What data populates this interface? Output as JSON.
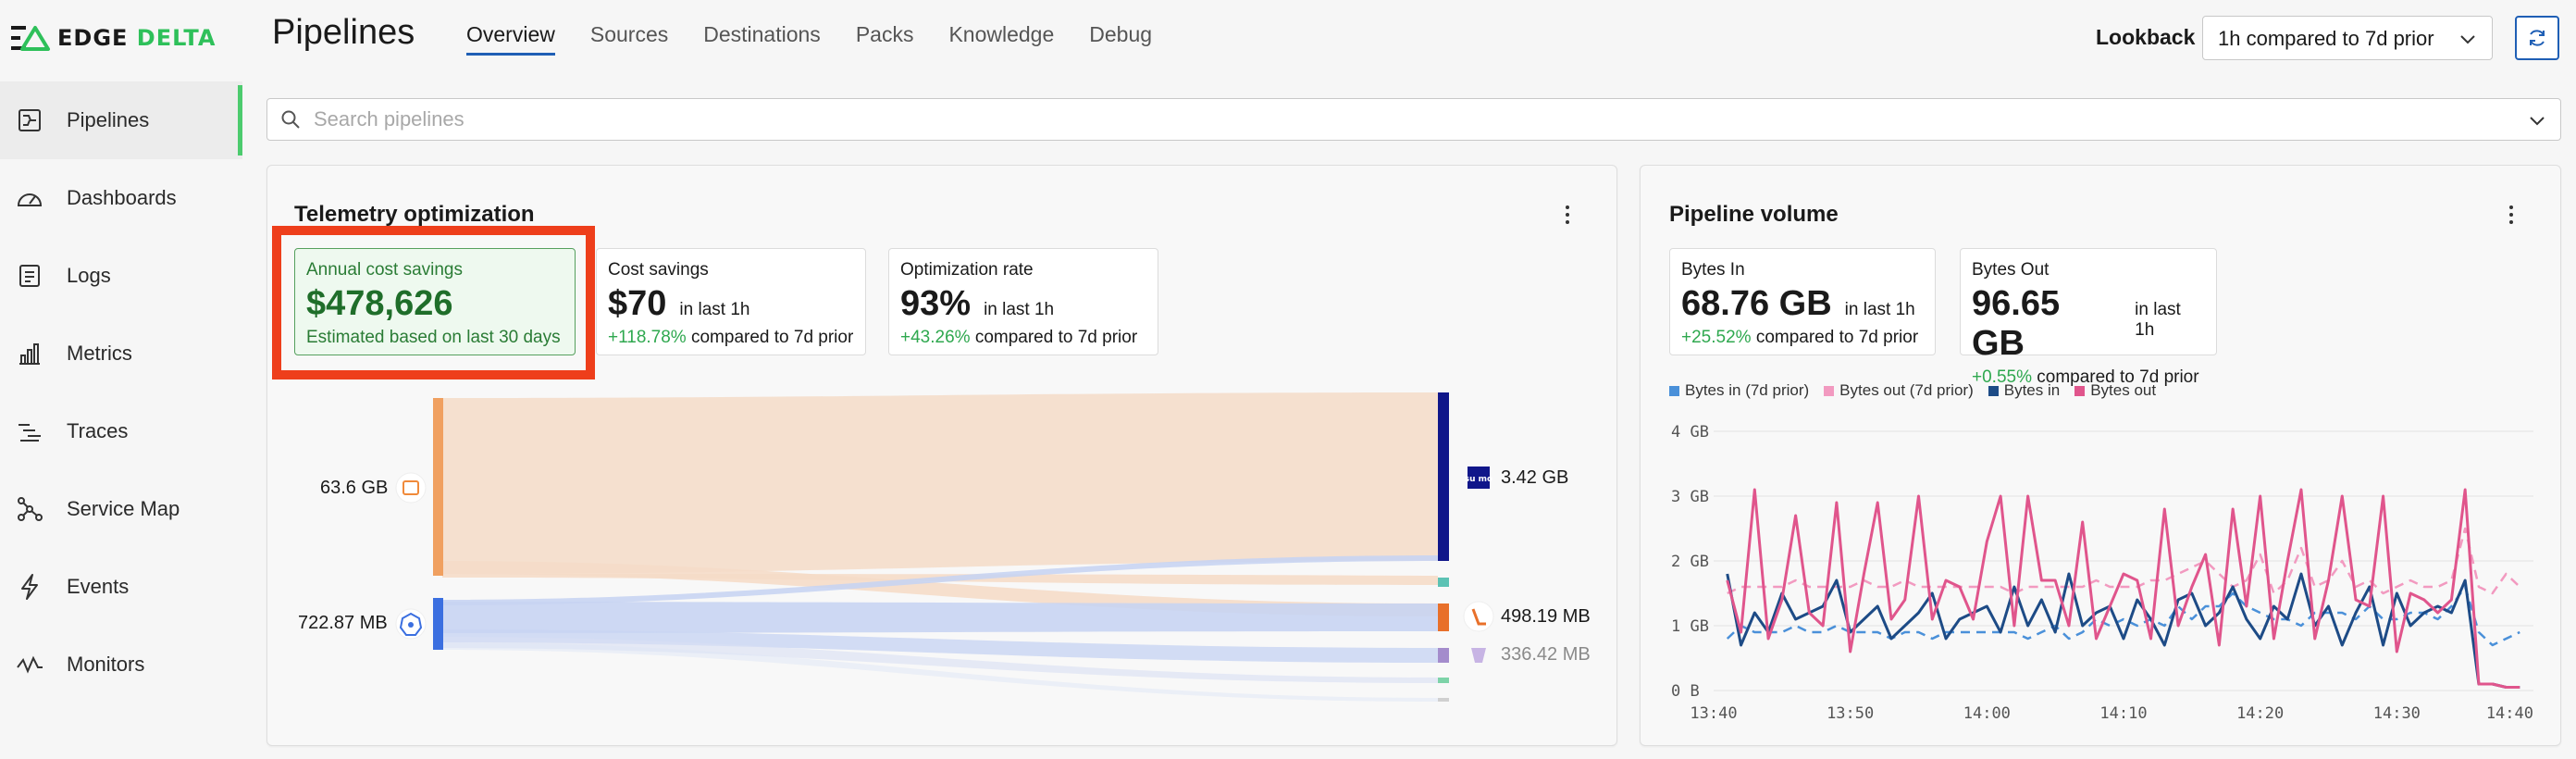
{
  "brand": {
    "name_dark": "EDGE ",
    "name_green": "DELTA"
  },
  "header": {
    "title": "Pipelines",
    "tabs": [
      {
        "label": "Overview",
        "active": true
      },
      {
        "label": "Sources"
      },
      {
        "label": "Destinations"
      },
      {
        "label": "Packs"
      },
      {
        "label": "Knowledge"
      },
      {
        "label": "Debug"
      }
    ],
    "lookback_label": "Lookback",
    "lookback_value": "1h compared to 7d prior"
  },
  "sidebar": {
    "items": [
      {
        "label": "Pipelines",
        "icon": "pipelines-icon",
        "active": true
      },
      {
        "label": "Dashboards",
        "icon": "gauge-icon"
      },
      {
        "label": "Logs",
        "icon": "logs-icon"
      },
      {
        "label": "Metrics",
        "icon": "bar-chart-icon"
      },
      {
        "label": "Traces",
        "icon": "traces-icon"
      },
      {
        "label": "Service Map",
        "icon": "network-icon"
      },
      {
        "label": "Events",
        "icon": "lightning-icon"
      },
      {
        "label": "Monitors",
        "icon": "pulse-icon"
      }
    ]
  },
  "search": {
    "placeholder": "Search pipelines"
  },
  "telemetry": {
    "title": "Telemetry optimization",
    "annual": {
      "label": "Annual cost savings",
      "value": "$478,626",
      "foot": "Estimated based on last 30 days"
    },
    "cost": {
      "label": "Cost savings",
      "value": "$70",
      "period": "in last 1h",
      "pct": "+118.78%",
      "compare": " compared to 7d prior"
    },
    "opt": {
      "label": "Optimization rate",
      "value": "93%",
      "period": "in last 1h",
      "pct": "+43.26%",
      "compare": " compared to 7d prior"
    },
    "sources": [
      {
        "label": "63.6 GB",
        "icon": "file-source-icon",
        "color": "#f0a060"
      },
      {
        "label": "722.87 MB",
        "icon": "kubernetes-icon",
        "color": "#3b6fe0"
      }
    ],
    "destinations": [
      {
        "label": "3.42 GB",
        "icon": "sumo-logic-icon",
        "color": "#10168a"
      },
      {
        "label": "",
        "icon": "",
        "color": "#5cc2b4"
      },
      {
        "label": "498.19 MB",
        "icon": "destination-orange-icon",
        "color": "#e8702a"
      },
      {
        "label": "336.42 MB",
        "icon": "destination-purple-icon",
        "color": "#a48ccc"
      }
    ]
  },
  "volume": {
    "title": "Pipeline volume",
    "bytes_in": {
      "label": "Bytes In",
      "value": "68.76 GB",
      "period": "in last 1h",
      "pct": "+25.52%",
      "compare": " compared to 7d prior"
    },
    "bytes_out": {
      "label": "Bytes Out",
      "value": "96.65 GB",
      "period": "in last 1h",
      "pct": "+0.55%",
      "compare": " compared to 7d prior"
    }
  },
  "chart_data": {
    "type": "line",
    "title": "",
    "xlabel": "",
    "ylabel": "",
    "x_ticks": [
      "13:40",
      "13:50",
      "14:00",
      "14:10",
      "14:20",
      "14:30",
      "14:40"
    ],
    "y_ticks": [
      "0 B",
      "1 GB",
      "2 GB",
      "3 GB",
      "4 GB"
    ],
    "ylim": [
      0,
      4
    ],
    "xlim_minutes": [
      0,
      60
    ],
    "x_minutes": [
      1,
      2,
      3,
      4,
      5,
      6,
      7,
      8,
      9,
      10,
      11,
      12,
      13,
      14,
      15,
      16,
      17,
      18,
      19,
      20,
      21,
      22,
      23,
      24,
      25,
      26,
      27,
      28,
      29,
      30,
      31,
      32,
      33,
      34,
      35,
      36,
      37,
      38,
      39,
      40,
      41,
      42,
      43,
      44,
      45,
      46,
      47,
      48,
      49,
      50,
      51,
      52,
      53,
      54,
      55,
      56,
      57,
      58,
      59
    ],
    "legend_position": "top-left",
    "grid": true,
    "series": [
      {
        "name": "Bytes in (7d prior)",
        "color": "#4a90d9",
        "dashed": true,
        "values": [
          0.8,
          1.0,
          0.9,
          0.9,
          0.9,
          1.0,
          0.9,
          0.9,
          1.0,
          0.9,
          0.9,
          0.9,
          0.8,
          0.9,
          0.9,
          0.8,
          0.9,
          0.9,
          0.9,
          0.9,
          0.9,
          0.9,
          0.8,
          0.9,
          1.0,
          0.8,
          0.9,
          1.1,
          1.0,
          1.1,
          1.0,
          1.1,
          1.0,
          1.3,
          1.1,
          1.3,
          1.3,
          1.5,
          1.3,
          1.2,
          1.1,
          1.1,
          1.0,
          1.2,
          1.2,
          1.2,
          1.1,
          1.3,
          1.1,
          1.1,
          1.2,
          1.2,
          1.1,
          1.3,
          1.6,
          0.9,
          0.7,
          0.8,
          0.9
        ]
      },
      {
        "name": "Bytes out (7d prior)",
        "color": "#f29ac0",
        "dashed": true,
        "values": [
          1.5,
          1.6,
          1.6,
          1.6,
          1.6,
          1.7,
          1.6,
          1.6,
          1.6,
          1.6,
          1.7,
          1.6,
          1.6,
          1.7,
          1.6,
          1.6,
          1.6,
          1.6,
          1.6,
          1.6,
          1.6,
          1.5,
          1.6,
          1.6,
          1.6,
          1.6,
          1.6,
          1.7,
          1.6,
          1.6,
          1.6,
          1.7,
          1.7,
          1.8,
          1.9,
          2.0,
          1.8,
          1.6,
          1.7,
          2.1,
          1.5,
          1.7,
          2.2,
          1.6,
          1.7,
          2.0,
          1.6,
          1.7,
          1.5,
          1.6,
          1.7,
          1.6,
          1.6,
          1.7,
          2.5,
          1.6,
          1.5,
          1.8,
          1.6
        ]
      },
      {
        "name": "Bytes in",
        "color": "#1d4b86",
        "dashed": false,
        "values": [
          1.8,
          0.7,
          1.2,
          0.9,
          1.5,
          1.1,
          1.2,
          1.3,
          1.7,
          0.9,
          1.1,
          1.3,
          0.8,
          1.0,
          1.2,
          1.5,
          0.8,
          1.1,
          1.2,
          1.3,
          0.9,
          1.6,
          1.0,
          1.4,
          0.9,
          1.8,
          1.0,
          1.2,
          1.3,
          0.8,
          1.4,
          1.1,
          0.7,
          1.4,
          1.5,
          1.0,
          1.2,
          1.6,
          1.1,
          0.8,
          1.3,
          1.1,
          1.8,
          1.0,
          1.3,
          0.7,
          1.2,
          1.6,
          0.7,
          1.5,
          1.0,
          1.2,
          1.3,
          1.2,
          1.7,
          0.1,
          0.1,
          0.05,
          0.05
        ]
      },
      {
        "name": "Bytes out",
        "color": "#e0558c",
        "dashed": false,
        "values": [
          1.7,
          0.9,
          3.1,
          0.8,
          1.4,
          2.7,
          1.2,
          1.0,
          2.9,
          0.6,
          1.8,
          2.9,
          1.1,
          1.4,
          3.0,
          1.1,
          1.7,
          1.6,
          1.1,
          2.3,
          3.0,
          1.0,
          3.0,
          1.7,
          1.7,
          1.0,
          2.6,
          0.8,
          1.3,
          1.8,
          1.7,
          0.8,
          2.8,
          1.0,
          1.6,
          2.1,
          0.7,
          2.8,
          1.3,
          3.0,
          0.8,
          2.0,
          3.1,
          0.8,
          1.7,
          3.0,
          1.4,
          1.3,
          3.0,
          0.6,
          1.5,
          1.4,
          1.2,
          1.4,
          3.1,
          0.1,
          0.1,
          0.05,
          0.05
        ]
      }
    ]
  }
}
